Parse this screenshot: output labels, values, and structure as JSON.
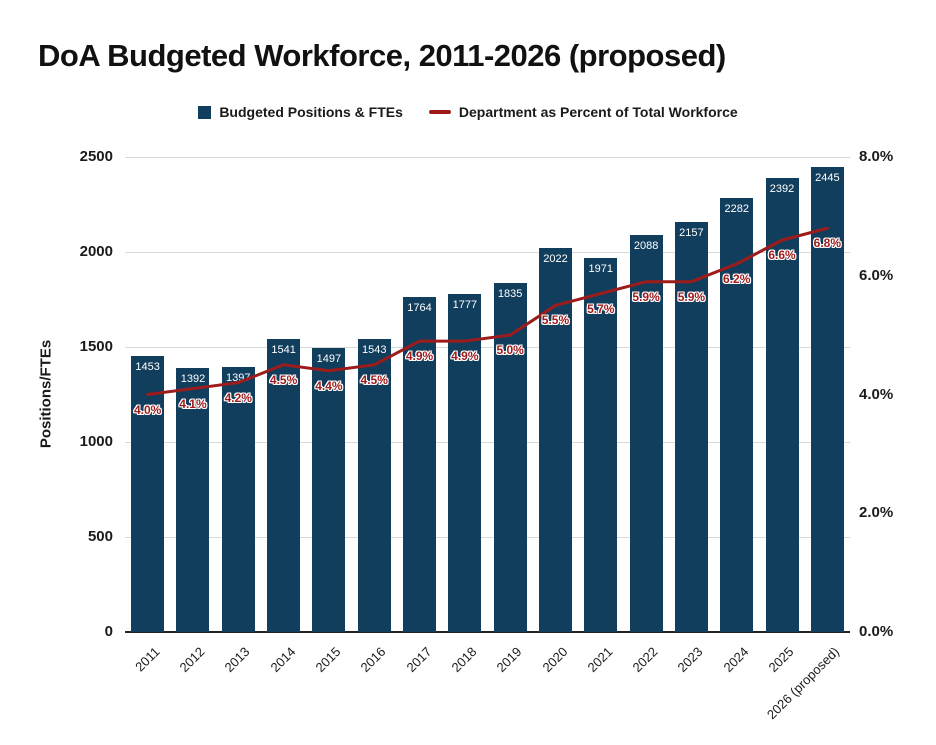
{
  "title": "DoA Budgeted Workforce, 2011-2026 (proposed)",
  "legend": [
    {
      "label": "Budgeted Positions & FTEs",
      "marker": "square-icon",
      "color": "#123e5e"
    },
    {
      "label": "Department as Percent of Total Workforce",
      "marker": "line-dash-icon",
      "color": "#9e1b1b"
    }
  ],
  "chart_data": {
    "type": "bar",
    "title": "DoA Budgeted Workforce, 2011-2026 (proposed)",
    "categories": [
      "2011",
      "2012",
      "2013",
      "2014",
      "2015",
      "2016",
      "2017",
      "2018",
      "2019",
      "2020",
      "2021",
      "2022",
      "2023",
      "2024",
      "2025",
      "2026 (proposed)"
    ],
    "series": [
      {
        "name": "Budgeted Positions & FTEs",
        "type": "bar",
        "axis": "left",
        "color": "#123e5e",
        "values": [
          1453,
          1392,
          1397,
          1541,
          1497,
          1543,
          1764,
          1777,
          1835,
          2022,
          1971,
          2088,
          2157,
          2282,
          2392,
          2445
        ],
        "value_labels": [
          "1453",
          "1392",
          "1397",
          "1541",
          "1497",
          "1543",
          "1764",
          "1777",
          "1835",
          "2022",
          "1971",
          "2088",
          "2157",
          "2282",
          "2392",
          "2445"
        ]
      },
      {
        "name": "Department as Percent of Total Workforce",
        "type": "line",
        "axis": "right",
        "color": "#9e1b1b",
        "values": [
          4.0,
          4.1,
          4.2,
          4.5,
          4.4,
          4.5,
          4.9,
          4.9,
          5.0,
          5.5,
          5.7,
          5.9,
          5.9,
          6.2,
          6.6,
          6.8
        ],
        "value_labels": [
          "4.0%",
          "4.1%",
          "4.2%",
          "4.5%",
          "4.4%",
          "4.5%",
          "4.9%",
          "4.9%",
          "5.0%",
          "5.5%",
          "5.7%",
          "5.9%",
          "5.9%",
          "6.2%",
          "6.6%",
          "6.8%"
        ]
      }
    ],
    "left_axis": {
      "label": "Positions/FTEs",
      "min": 0,
      "max": 2500,
      "ticks": [
        0,
        500,
        1000,
        1500,
        2000,
        2500
      ],
      "tick_labels": [
        "0",
        "500",
        "1000",
        "1500",
        "2000",
        "2500"
      ]
    },
    "right_axis": {
      "label": "",
      "min": 0,
      "max": 8,
      "ticks": [
        0,
        2,
        4,
        6,
        8
      ],
      "tick_labels": [
        "0.0%",
        "2.0%",
        "4.0%",
        "6.0%",
        "8.0%"
      ]
    },
    "grid": true,
    "legend_position": "top"
  }
}
